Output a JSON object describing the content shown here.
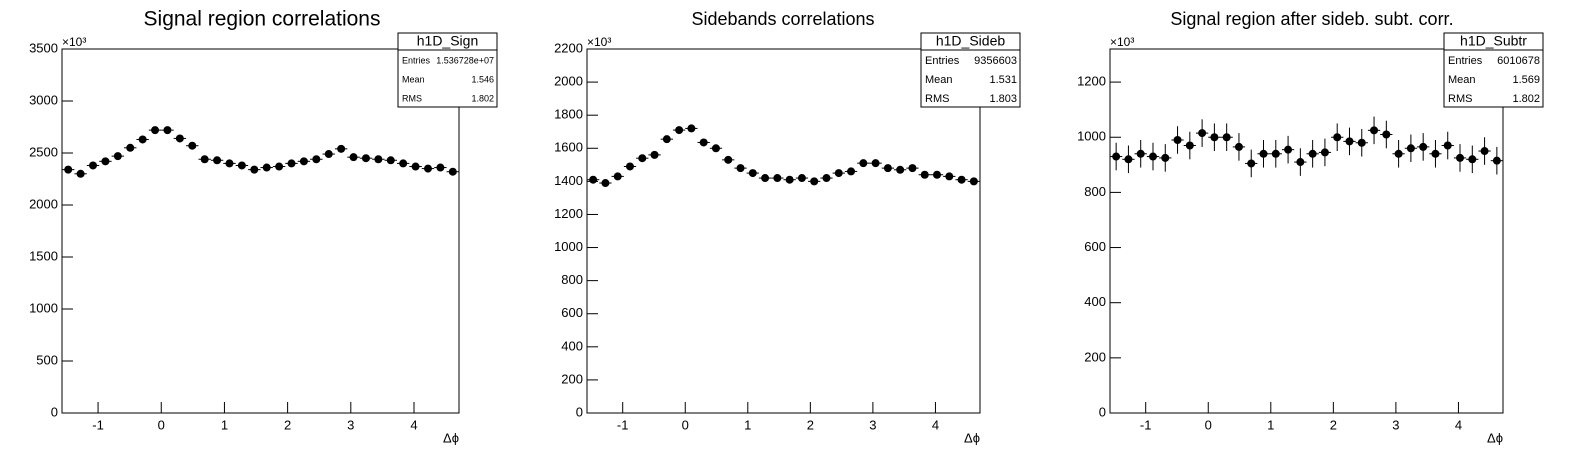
{
  "chart_data": [
    {
      "type": "histogram",
      "title": "Signal region correlations",
      "x_label": "Δϕ",
      "y_multiplier": "×10³",
      "bins": [
        -1.5708,
        -1.3744,
        -1.1781,
        -0.9817,
        -0.7854,
        -0.589,
        -0.3927,
        -0.1963,
        0,
        0.1963,
        0.3927,
        0.589,
        0.7854,
        0.9817,
        1.1781,
        1.3744,
        1.5708,
        1.7671,
        1.9635,
        2.1598,
        2.3562,
        2.5525,
        2.7489,
        2.9452,
        3.1416,
        3.3379,
        3.5343,
        3.7306,
        3.927,
        4.1233,
        4.3197,
        4.516,
        4.7124
      ],
      "values": [
        2340,
        2300,
        2380,
        2420,
        2470,
        2550,
        2630,
        2720,
        2720,
        2640,
        2570,
        2440,
        2430,
        2400,
        2380,
        2340,
        2360,
        2370,
        2400,
        2420,
        2440,
        2490,
        2540,
        2460,
        2450,
        2440,
        2430,
        2400,
        2370,
        2350,
        2360,
        2320
      ],
      "color": "#000000",
      "xlim": [
        -1.5708,
        4.7124
      ],
      "ylim": [
        0,
        3500
      ],
      "xticks": [
        -1,
        0,
        1,
        2,
        3,
        4
      ],
      "yticks": [
        0,
        500,
        1000,
        1500,
        2000,
        2500,
        3000,
        3500
      ],
      "stats": {
        "name": "h1D_Sign",
        "rows": [
          {
            "label": "Entries",
            "value": "1.536728e+07"
          },
          {
            "label": "Mean",
            "value": "1.546"
          },
          {
            "label": "RMS",
            "value": "1.802"
          }
        ]
      }
    },
    {
      "type": "histogram",
      "title": "Sidebands correlations",
      "x_label": "Δϕ",
      "y_multiplier": "×10³",
      "bins": [
        -1.5708,
        -1.3744,
        -1.1781,
        -0.9817,
        -0.7854,
        -0.589,
        -0.3927,
        -0.1963,
        0,
        0.1963,
        0.3927,
        0.589,
        0.7854,
        0.9817,
        1.1781,
        1.3744,
        1.5708,
        1.7671,
        1.9635,
        2.1598,
        2.3562,
        2.5525,
        2.7489,
        2.9452,
        3.1416,
        3.3379,
        3.5343,
        3.7306,
        3.927,
        4.1233,
        4.3197,
        4.516,
        4.7124
      ],
      "values": [
        1410,
        1390,
        1430,
        1490,
        1540,
        1560,
        1655,
        1710,
        1720,
        1635,
        1600,
        1530,
        1480,
        1450,
        1420,
        1420,
        1410,
        1420,
        1400,
        1420,
        1450,
        1460,
        1510,
        1510,
        1480,
        1470,
        1480,
        1440,
        1440,
        1430,
        1410,
        1400
      ],
      "color": "#000000",
      "xlim": [
        -1.5708,
        4.7124
      ],
      "ylim": [
        0,
        2200
      ],
      "xticks": [
        -1,
        0,
        1,
        2,
        3,
        4
      ],
      "yticks": [
        0,
        200,
        400,
        600,
        800,
        1000,
        1200,
        1400,
        1600,
        1800,
        2000,
        2200
      ],
      "stats": {
        "name": "h1D_Sideb",
        "rows": [
          {
            "label": "Entries",
            "value": "9356603"
          },
          {
            "label": "Mean",
            "value": "1.531"
          },
          {
            "label": "RMS",
            "value": "1.803"
          }
        ]
      }
    },
    {
      "type": "histogram",
      "title": "Signal region after sideb. subt. corr.",
      "x_label": "Δϕ",
      "y_multiplier": "×10³",
      "bins": [
        -1.5708,
        -1.3744,
        -1.1781,
        -0.9817,
        -0.7854,
        -0.589,
        -0.3927,
        -0.1963,
        0,
        0.1963,
        0.3927,
        0.589,
        0.7854,
        0.9817,
        1.1781,
        1.3744,
        1.5708,
        1.7671,
        1.9635,
        2.1598,
        2.3562,
        2.5525,
        2.7489,
        2.9452,
        3.1416,
        3.3379,
        3.5343,
        3.7306,
        3.927,
        4.1233,
        4.3197,
        4.516,
        4.7124
      ],
      "values": [
        930,
        920,
        940,
        930,
        925,
        990,
        970,
        1015,
        1000,
        1000,
        965,
        905,
        940,
        940,
        955,
        910,
        940,
        945,
        1000,
        985,
        980,
        1025,
        1010,
        940,
        960,
        965,
        940,
        970,
        925,
        920,
        950,
        915
      ],
      "errors": [
        50,
        50,
        50,
        50,
        50,
        50,
        50,
        50,
        50,
        50,
        50,
        50,
        50,
        50,
        50,
        50,
        50,
        50,
        50,
        50,
        50,
        50,
        50,
        50,
        50,
        50,
        50,
        50,
        50,
        50,
        50,
        50
      ],
      "color": "#000000",
      "xlim": [
        -1.5708,
        4.7124
      ],
      "ylim": [
        0,
        1320
      ],
      "xticks": [
        -1,
        0,
        1,
        2,
        3,
        4
      ],
      "yticks": [
        0,
        200,
        400,
        600,
        800,
        1000,
        1200
      ],
      "stats": {
        "name": "h1D_Subtr",
        "rows": [
          {
            "label": "Entries",
            "value": "6010678"
          },
          {
            "label": "Mean",
            "value": "1.569"
          },
          {
            "label": "RMS",
            "value": "1.802"
          }
        ]
      }
    }
  ]
}
